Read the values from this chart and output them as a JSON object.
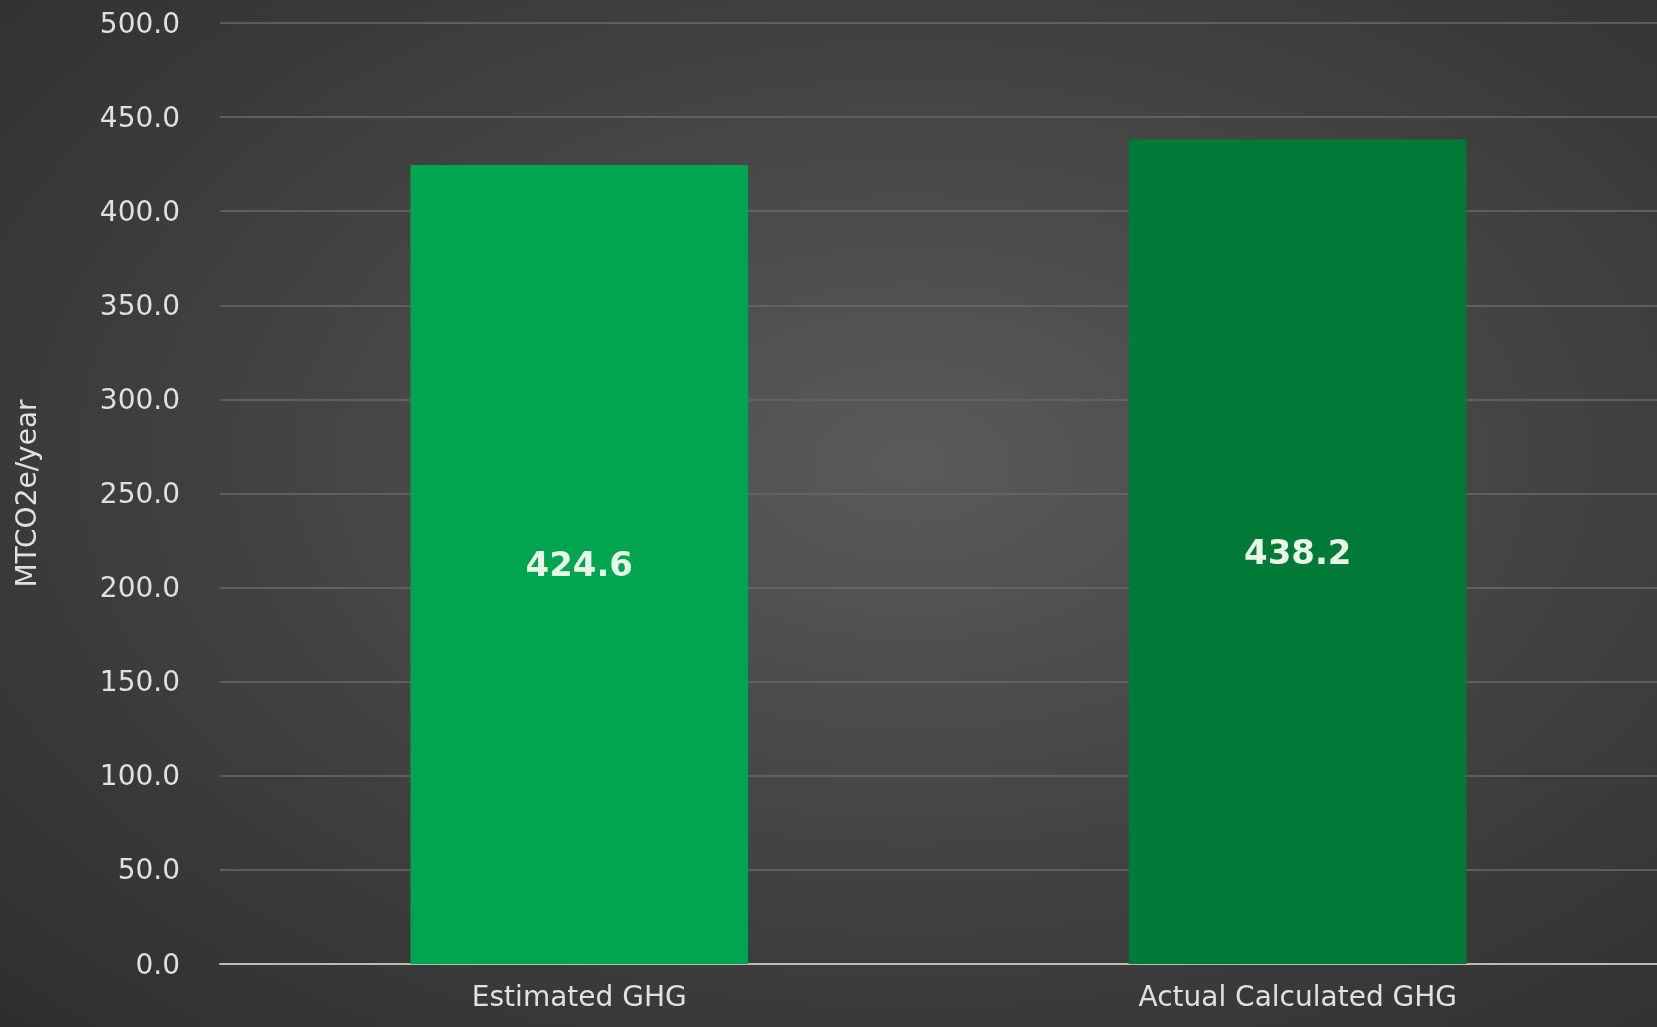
{
  "chart_data": {
    "type": "bar",
    "ylabel": "MTCO2e/year",
    "categories": [
      "Estimated GHG",
      "Actual Calculated GHG"
    ],
    "values": [
      424.6,
      438.2
    ],
    "colors": [
      "#00a64f",
      "#007a36"
    ],
    "ylim": [
      0,
      500
    ],
    "yticks": [
      {
        "value": 0,
        "label": "0.0"
      },
      {
        "value": 50,
        "label": "50.0"
      },
      {
        "value": 100,
        "label": "100.0"
      },
      {
        "value": 150,
        "label": "150.0"
      },
      {
        "value": 200,
        "label": "200.0"
      },
      {
        "value": 250,
        "label": "250.0"
      },
      {
        "value": 300,
        "label": "300.0"
      },
      {
        "value": 350,
        "label": "350.0"
      },
      {
        "value": 400,
        "label": "400.0"
      },
      {
        "value": 450,
        "label": "450.0"
      },
      {
        "value": 500,
        "label": "500.0"
      }
    ],
    "grid": "y",
    "data_labels": true
  }
}
